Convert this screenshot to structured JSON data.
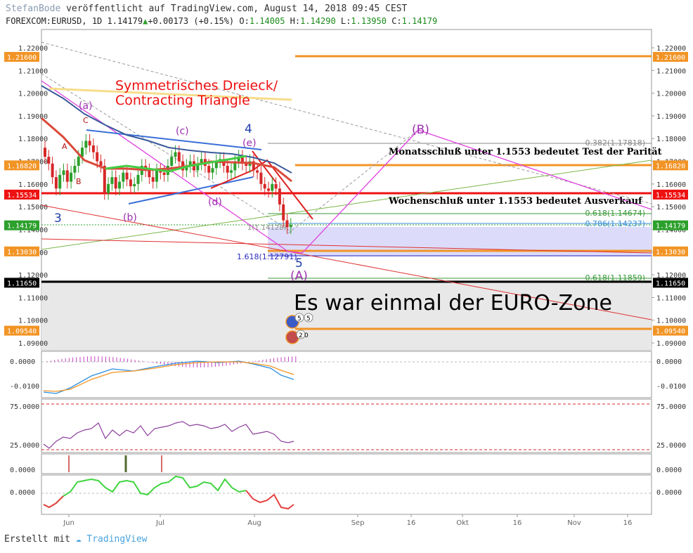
{
  "header": {
    "author": "StefanBode",
    "published": "veröffentlicht auf TradingView.com, August 14, 2018 09:45 CEST",
    "symbol": "FOREXCOM:EURUSD, 1D",
    "last": "1.14179",
    "change": "+0.00173 (+0.15%)",
    "o_label": "O:",
    "o_val": "1.14005",
    "h_label": "H:",
    "h_val": "1.14290",
    "l_label": "L:",
    "l_val": "1.13950",
    "c_label": "C:",
    "c_val": "1.14179"
  },
  "footer": {
    "created": "Erstellt mit",
    "brand": "TradingView"
  },
  "colors": {
    "up": "#2ca02c",
    "down": "#d62728",
    "orange": "#f29425",
    "red": "#ee1111",
    "magenta": "#e040e0",
    "purple": "#9b2fae",
    "blue": "#1f3ea8"
  },
  "annotations": {
    "title_1": "Symmetrisches Dreieck/",
    "title_2": "Contracting Triangle",
    "monat": "Monatsschluß unter 1.1553 bedeutet Test der Parität",
    "woche": "Wochenschluß unter 1.1553 bedeutet Ausverkauf",
    "euro": "Es war einmal der EURO-Zone",
    "wave_a": "(a)",
    "wave_b": "(b)",
    "wave_c": "(c)",
    "wave_d": "(d)",
    "wave_e": "(e)",
    "wave_3": "3",
    "wave_4": "4",
    "wave_5": "5",
    "wave_A": "(A)",
    "wave_B": "(B)",
    "sub_A": "A",
    "sub_B": "B",
    "sub_C": "C",
    "fib_382": "0.382(1.17818)",
    "fib_618a": "0.618(1.14674)",
    "fib_786": "0.786(1.14237)",
    "fib_1618": "1.618(1.12791)",
    "fib_618b": "0.618(1.11859)",
    "fib_small": "1(1.14128)",
    "event_1": "5",
    "event_2": "5",
    "event_3": "2",
    "event_4": "0"
  },
  "chart_data": {
    "type": "candlestick",
    "price_axis": [
      "1.22000",
      "1.21000",
      "1.20000",
      "1.19000",
      "1.18000",
      "1.17000",
      "1.16000",
      "1.15000",
      "1.14000",
      "1.13000",
      "1.12000",
      "1.11000",
      "1.10000",
      "1.09000"
    ],
    "price_labels": [
      {
        "text": "1.21600",
        "value": 1.216,
        "color": "#f29425"
      },
      {
        "text": "1.16820",
        "value": 1.1682,
        "color": "#f29425"
      },
      {
        "text": "1.15534",
        "value": 1.15534,
        "color": "#ee1111"
      },
      {
        "text": "1.14179",
        "value": 1.14179,
        "color": "#2ca02c"
      },
      {
        "text": "1.13030",
        "value": 1.1303,
        "color": "#f29425"
      },
      {
        "text": "1.11650",
        "value": 1.1165,
        "color": "#000000"
      },
      {
        "text": "1.09540",
        "value": 1.0954,
        "color": "#f29425"
      }
    ],
    "time_axis": [
      "Jun",
      "Jul",
      "Aug",
      "Sep",
      "16",
      "Okt",
      "16",
      "Nov",
      "16"
    ],
    "macd_axis": [
      "0.0000",
      "-0.0100"
    ],
    "rsi_axis": [
      "75.0000",
      "25.0000"
    ],
    "p4_axis": [
      "0.0000"
    ],
    "p5_axis": [
      "0.0000"
    ]
  }
}
